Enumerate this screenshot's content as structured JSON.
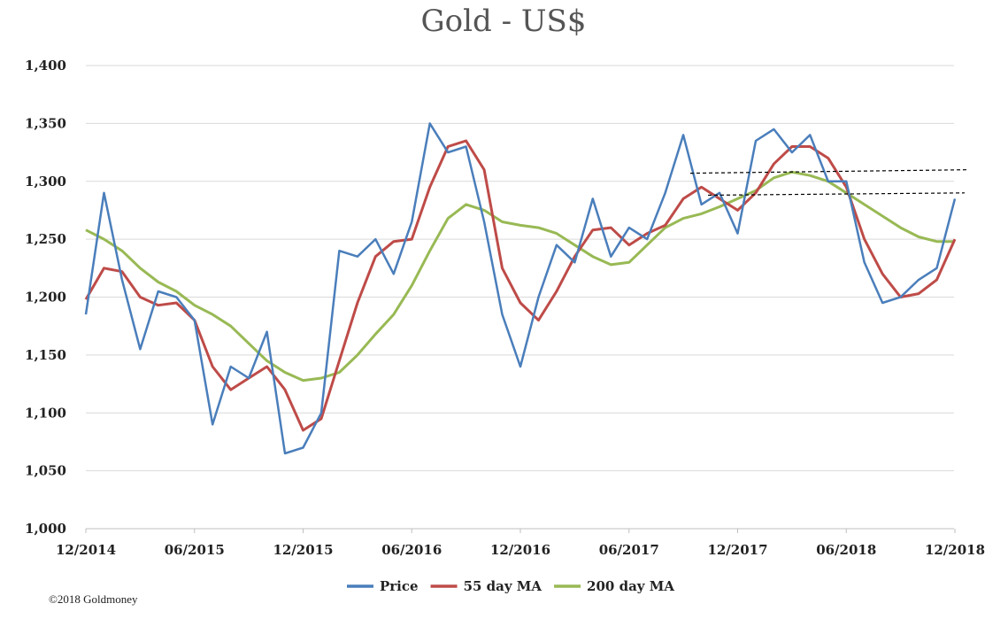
{
  "chart_data": {
    "type": "line",
    "title": "Gold - US$",
    "xlabel": "",
    "ylabel": "",
    "x_ticks": [
      "12/2014",
      "06/2015",
      "12/2015",
      "06/2016",
      "12/2016",
      "06/2017",
      "12/2017",
      "06/2018",
      "12/2018"
    ],
    "y_ticks": [
      "1,000",
      "1,050",
      "1,100",
      "1,150",
      "1,200",
      "1,250",
      "1,300",
      "1,350",
      "1,400"
    ],
    "xlim": [
      "2014-12",
      "2018-12"
    ],
    "ylim": [
      1000,
      1400
    ],
    "grid": "horizontal",
    "legend_position": "bottom",
    "colors": {
      "price": "#4a7ebb",
      "ma55": "#be4b48",
      "ma200": "#98b954",
      "reference": "#000000"
    },
    "series": [
      {
        "name": "Price",
        "color": "#4a7ebb",
        "x": [
          "2014-12",
          "2015-01",
          "2015-02",
          "2015-03",
          "2015-04",
          "2015-05",
          "2015-06",
          "2015-07",
          "2015-08",
          "2015-09",
          "2015-10",
          "2015-11",
          "2015-12",
          "2016-01",
          "2016-02",
          "2016-03",
          "2016-04",
          "2016-05",
          "2016-06",
          "2016-07",
          "2016-08",
          "2016-09",
          "2016-10",
          "2016-11",
          "2016-12",
          "2017-01",
          "2017-02",
          "2017-03",
          "2017-04",
          "2017-05",
          "2017-06",
          "2017-07",
          "2017-08",
          "2017-09",
          "2017-10",
          "2017-11",
          "2017-12",
          "2018-01",
          "2018-02",
          "2018-03",
          "2018-04",
          "2018-05",
          "2018-06",
          "2018-07",
          "2018-08",
          "2018-09",
          "2018-10",
          "2018-11",
          "2018-12"
        ],
        "values": [
          1185,
          1290,
          1215,
          1155,
          1205,
          1200,
          1180,
          1090,
          1140,
          1130,
          1170,
          1065,
          1070,
          1100,
          1240,
          1235,
          1250,
          1220,
          1265,
          1350,
          1325,
          1330,
          1265,
          1185,
          1140,
          1200,
          1245,
          1230,
          1285,
          1235,
          1260,
          1250,
          1290,
          1340,
          1280,
          1290,
          1255,
          1335,
          1345,
          1325,
          1340,
          1300,
          1300,
          1230,
          1195,
          1200,
          1215,
          1225,
          1285
        ]
      },
      {
        "name": "55 day MA",
        "color": "#be4b48",
        "x": [
          "2014-12",
          "2015-01",
          "2015-02",
          "2015-03",
          "2015-04",
          "2015-05",
          "2015-06",
          "2015-07",
          "2015-08",
          "2015-09",
          "2015-10",
          "2015-11",
          "2015-12",
          "2016-01",
          "2016-02",
          "2016-03",
          "2016-04",
          "2016-05",
          "2016-06",
          "2016-07",
          "2016-08",
          "2016-09",
          "2016-10",
          "2016-11",
          "2016-12",
          "2017-01",
          "2017-02",
          "2017-03",
          "2017-04",
          "2017-05",
          "2017-06",
          "2017-07",
          "2017-08",
          "2017-09",
          "2017-10",
          "2017-11",
          "2017-12",
          "2018-01",
          "2018-02",
          "2018-03",
          "2018-04",
          "2018-05",
          "2018-06",
          "2018-07",
          "2018-08",
          "2018-09",
          "2018-10",
          "2018-11",
          "2018-12"
        ],
        "values": [
          1198,
          1225,
          1222,
          1200,
          1193,
          1195,
          1180,
          1140,
          1120,
          1130,
          1140,
          1120,
          1085,
          1095,
          1145,
          1195,
          1235,
          1248,
          1250,
          1295,
          1330,
          1335,
          1310,
          1225,
          1195,
          1180,
          1205,
          1235,
          1258,
          1260,
          1245,
          1255,
          1262,
          1285,
          1295,
          1285,
          1275,
          1290,
          1315,
          1330,
          1330,
          1320,
          1295,
          1250,
          1220,
          1200,
          1203,
          1215,
          1250
        ]
      },
      {
        "name": "200 day MA",
        "color": "#98b954",
        "x": [
          "2014-12",
          "2015-01",
          "2015-02",
          "2015-03",
          "2015-04",
          "2015-05",
          "2015-06",
          "2015-07",
          "2015-08",
          "2015-09",
          "2015-10",
          "2015-11",
          "2015-12",
          "2016-01",
          "2016-02",
          "2016-03",
          "2016-04",
          "2016-05",
          "2016-06",
          "2016-07",
          "2016-08",
          "2016-09",
          "2016-10",
          "2016-11",
          "2016-12",
          "2017-01",
          "2017-02",
          "2017-03",
          "2017-04",
          "2017-05",
          "2017-06",
          "2017-07",
          "2017-08",
          "2017-09",
          "2017-10",
          "2017-11",
          "2017-12",
          "2018-01",
          "2018-02",
          "2018-03",
          "2018-04",
          "2018-05",
          "2018-06",
          "2018-07",
          "2018-08",
          "2018-09",
          "2018-10",
          "2018-11",
          "2018-12"
        ],
        "values": [
          1258,
          1250,
          1240,
          1225,
          1213,
          1205,
          1193,
          1185,
          1175,
          1160,
          1145,
          1135,
          1128,
          1130,
          1135,
          1150,
          1168,
          1185,
          1210,
          1240,
          1268,
          1280,
          1275,
          1265,
          1262,
          1260,
          1255,
          1245,
          1235,
          1228,
          1230,
          1245,
          1260,
          1268,
          1272,
          1278,
          1285,
          1292,
          1303,
          1308,
          1305,
          1300,
          1290,
          1280,
          1270,
          1260,
          1252,
          1248,
          1248
        ]
      }
    ]
  },
  "footer": {
    "copyright": "©2018 Goldmoney"
  }
}
